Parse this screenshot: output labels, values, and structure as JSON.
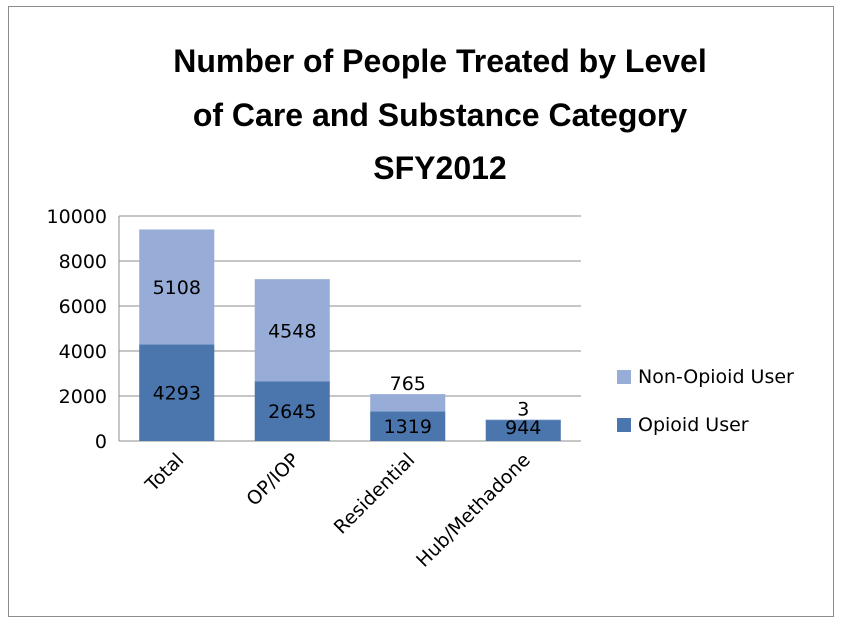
{
  "chart_data": {
    "type": "bar",
    "stacked": true,
    "title_lines": [
      "Number of People Treated by Level",
      "of Care and Substance Category",
      "SFY2012"
    ],
    "categories": [
      "Total",
      "OP/IOP",
      "Residential",
      "Hub/Methadone"
    ],
    "series": [
      {
        "name": "Opioid User",
        "values": [
          4293,
          2645,
          1319,
          944
        ],
        "color": "#4a76ad"
      },
      {
        "name": "Non-Opioid User",
        "values": [
          5108,
          4548,
          765,
          3
        ],
        "color": "#97acd6"
      }
    ],
    "ylim": [
      0,
      10000
    ],
    "yticks": [
      "0",
      "2000",
      "4000",
      "6000",
      "8000",
      "10000"
    ],
    "grid": true,
    "legend_position": "right"
  }
}
